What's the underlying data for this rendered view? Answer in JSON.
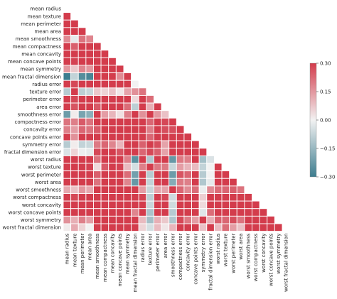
{
  "chart_data": {
    "type": "heatmap",
    "mask": "upper-triangle",
    "labels": [
      "mean radius",
      "mean texture",
      "mean perimeter",
      "mean area",
      "mean smoothness",
      "mean compactness",
      "mean concavity",
      "mean concave points",
      "mean symmetry",
      "mean fractal dimension",
      "radius error",
      "texture error",
      "perimeter error",
      "area error",
      "smoothness error",
      "compactness error",
      "concavity error",
      "concave points error",
      "symmetry error",
      "fractal dimension error",
      "worst radius",
      "worst texture",
      "worst perimeter",
      "worst area",
      "worst smoothness",
      "worst compactness",
      "worst concavity",
      "worst concave points",
      "worst symmetry",
      "worst fractal dimension"
    ],
    "colorbar": {
      "min": -0.3,
      "max": 0.3,
      "ticks": [
        0.3,
        0.15,
        0.0,
        -0.15,
        -0.3
      ],
      "tick_labels": [
        "0.30",
        "0.15",
        "0.00",
        "−0.15",
        "−0.30"
      ],
      "color_low": "#3d7d8f",
      "color_mid": "#f2f2f2",
      "color_high": "#d33c4c"
    },
    "values": [
      [],
      [
        0.32
      ],
      [
        1.0,
        0.33
      ],
      [
        0.99,
        0.32,
        0.99
      ],
      [
        0.17,
        -0.02,
        0.21,
        0.18
      ],
      [
        0.51,
        0.24,
        0.56,
        0.5,
        0.66
      ],
      [
        0.68,
        0.3,
        0.72,
        0.69,
        0.52,
        0.88
      ],
      [
        0.82,
        0.29,
        0.85,
        0.82,
        0.55,
        0.83,
        0.92
      ],
      [
        0.15,
        0.07,
        0.18,
        0.15,
        0.56,
        0.6,
        0.5,
        0.46
      ],
      [
        -0.31,
        -0.08,
        -0.26,
        -0.28,
        0.58,
        0.57,
        0.34,
        0.17,
        0.48
      ],
      [
        0.68,
        0.28,
        0.69,
        0.73,
        0.3,
        0.5,
        0.63,
        0.7,
        0.3,
        0.0
      ],
      [
        -0.1,
        0.39,
        -0.09,
        -0.07,
        0.07,
        0.05,
        0.08,
        0.02,
        0.13,
        0.16,
        0.21
      ],
      [
        0.67,
        0.28,
        0.69,
        0.73,
        0.3,
        0.55,
        0.66,
        0.71,
        0.31,
        0.04,
        0.97,
        0.22
      ],
      [
        0.74,
        0.26,
        0.74,
        0.8,
        0.25,
        0.46,
        0.62,
        0.69,
        0.22,
        -0.09,
        0.95,
        0.11,
        0.94
      ],
      [
        -0.22,
        0.01,
        -0.2,
        -0.17,
        0.33,
        0.14,
        0.1,
        0.03,
        0.19,
        0.4,
        0.16,
        0.4,
        0.15,
        0.08
      ],
      [
        0.21,
        0.19,
        0.25,
        0.21,
        0.32,
        0.74,
        0.67,
        0.49,
        0.42,
        0.56,
        0.36,
        0.23,
        0.42,
        0.28,
        0.34
      ],
      [
        0.19,
        0.14,
        0.23,
        0.21,
        0.25,
        0.57,
        0.69,
        0.44,
        0.34,
        0.45,
        0.33,
        0.19,
        0.36,
        0.27,
        0.27,
        0.8
      ],
      [
        0.38,
        0.16,
        0.41,
        0.37,
        0.38,
        0.64,
        0.68,
        0.62,
        0.39,
        0.34,
        0.51,
        0.23,
        0.56,
        0.42,
        0.33,
        0.74,
        0.77
      ],
      [
        -0.1,
        0.01,
        -0.08,
        -0.07,
        0.2,
        0.23,
        0.18,
        0.1,
        0.45,
        0.35,
        0.24,
        0.41,
        0.27,
        0.13,
        0.41,
        0.39,
        0.31,
        0.31
      ],
      [
        -0.04,
        0.05,
        -0.01,
        -0.02,
        0.28,
        0.51,
        0.45,
        0.26,
        0.33,
        0.69,
        0.23,
        0.28,
        0.24,
        0.13,
        0.43,
        0.8,
        0.73,
        0.61,
        0.37
      ],
      [
        0.97,
        0.35,
        0.97,
        0.96,
        0.21,
        0.54,
        0.69,
        0.83,
        0.19,
        -0.25,
        0.72,
        -0.11,
        0.7,
        0.76,
        -0.23,
        0.2,
        0.19,
        0.36,
        -0.13,
        -0.04
      ],
      [
        0.3,
        0.91,
        0.3,
        0.29,
        0.04,
        0.25,
        0.3,
        0.29,
        0.09,
        -0.05,
        0.19,
        0.41,
        0.2,
        0.2,
        -0.07,
        0.14,
        0.1,
        0.09,
        -0.08,
        -0.0,
        0.36
      ],
      [
        0.97,
        0.36,
        0.97,
        0.96,
        0.24,
        0.59,
        0.73,
        0.86,
        0.22,
        -0.21,
        0.72,
        -0.1,
        0.72,
        0.76,
        -0.22,
        0.26,
        0.23,
        0.39,
        -0.1,
        -0.0,
        0.99,
        0.37
      ],
      [
        0.94,
        0.34,
        0.94,
        0.96,
        0.21,
        0.51,
        0.68,
        0.81,
        0.18,
        -0.23,
        0.75,
        -0.08,
        0.73,
        0.81,
        -0.18,
        0.2,
        0.19,
        0.34,
        -0.11,
        -0.02,
        0.98,
        0.35,
        0.98
      ],
      [
        0.12,
        0.08,
        0.15,
        0.12,
        0.81,
        0.57,
        0.45,
        0.45,
        0.43,
        0.5,
        0.14,
        -0.07,
        0.13,
        0.13,
        0.31,
        0.23,
        0.17,
        0.22,
        -0.01,
        0.17,
        0.22,
        0.23,
        0.24,
        0.21
      ],
      [
        0.41,
        0.28,
        0.46,
        0.39,
        0.47,
        0.87,
        0.75,
        0.67,
        0.47,
        0.46,
        0.29,
        -0.09,
        0.34,
        0.28,
        -0.06,
        0.68,
        0.48,
        0.45,
        0.06,
        0.39,
        0.48,
        0.36,
        0.53,
        0.44,
        0.57
      ],
      [
        0.53,
        0.3,
        0.56,
        0.51,
        0.43,
        0.82,
        0.88,
        0.75,
        0.43,
        0.35,
        0.38,
        -0.07,
        0.42,
        0.39,
        -0.06,
        0.64,
        0.66,
        0.55,
        0.04,
        0.38,
        0.57,
        0.37,
        0.62,
        0.54,
        0.52,
        0.89
      ],
      [
        0.74,
        0.3,
        0.77,
        0.72,
        0.5,
        0.82,
        0.86,
        0.91,
        0.43,
        0.18,
        0.53,
        -0.12,
        0.55,
        0.54,
        -0.1,
        0.48,
        0.44,
        0.6,
        -0.03,
        0.22,
        0.79,
        0.36,
        0.82,
        0.75,
        0.55,
        0.8,
        0.86
      ],
      [
        0.16,
        0.11,
        0.19,
        0.14,
        0.39,
        0.51,
        0.41,
        0.38,
        0.7,
        0.33,
        0.09,
        -0.13,
        0.11,
        0.07,
        -0.11,
        0.28,
        0.2,
        0.14,
        0.39,
        0.11,
        0.24,
        0.23,
        0.27,
        0.21,
        0.49,
        0.61,
        0.53,
        0.5
      ],
      [
        0.01,
        0.12,
        0.05,
        0.0,
        0.5,
        0.69,
        0.51,
        0.37,
        0.44,
        0.77,
        0.05,
        -0.05,
        0.09,
        0.02,
        0.1,
        0.59,
        0.44,
        0.31,
        0.08,
        0.59,
        0.09,
        0.22,
        0.14,
        0.08,
        0.62,
        0.81,
        0.69,
        0.51,
        0.54
      ]
    ]
  }
}
